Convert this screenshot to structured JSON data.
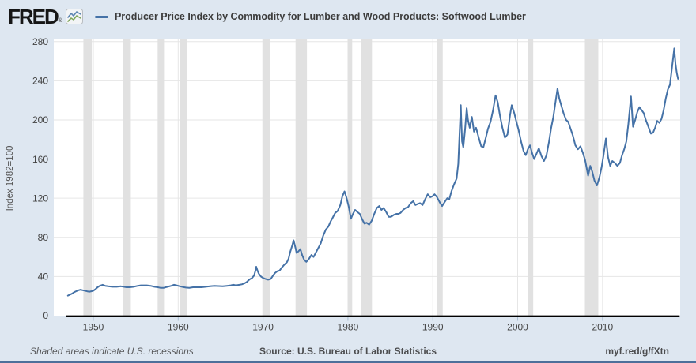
{
  "header": {
    "logo_text": "FRED",
    "registered_mark": "®",
    "series_title": "Producer Price Index by Commodity for Lumber and Wood Products: Softwood Lumber"
  },
  "footer": {
    "recession_note": "Shaded areas indicate U.S. recessions",
    "source": "Source: U.S. Bureau of Labor Statistics",
    "short_url": "myf.red/g/fXtn"
  },
  "colors": {
    "background": "#dee7f1",
    "bottom_bar": "#4d6f9a"
  },
  "chart_data": {
    "type": "line",
    "title": "Producer Price Index by Commodity for Lumber and Wood Products: Softwood Lumber",
    "xlabel": "",
    "ylabel": "Index 1982=100",
    "legend_position": "top",
    "grid": true,
    "xlim": [
      1945.34,
      2019.15
    ],
    "ylim": [
      0,
      283
    ],
    "x_ticks": [
      1950,
      1960,
      1970,
      1980,
      1990,
      2000,
      2010
    ],
    "y_ticks": [
      0,
      40,
      80,
      120,
      160,
      200,
      240,
      280
    ],
    "colors": {
      "line": "#4572a7",
      "plot_bg": "#ffffff",
      "gridline": "#e6e6e6",
      "recession_band": "#e1e1e1",
      "axis": "#000000",
      "tick_mark": "#a9bdd1",
      "tick_text": "#444444"
    },
    "recessions": [
      [
        1948.83,
        1949.83
      ],
      [
        1953.5,
        1954.42
      ],
      [
        1957.58,
        1958.33
      ],
      [
        1960.25,
        1961.08
      ],
      [
        1969.92,
        1970.83
      ],
      [
        1973.83,
        1975.17
      ],
      [
        1980.0,
        1980.5
      ],
      [
        1981.5,
        1982.83
      ],
      [
        1990.5,
        1991.17
      ],
      [
        2001.17,
        2001.83
      ],
      [
        2007.92,
        2009.5
      ]
    ],
    "series": [
      {
        "name": "Producer Price Index by Commodity for Lumber and Wood Products: Softwood Lumber",
        "points": [
          [
            1947.0,
            20.5
          ],
          [
            1947.25,
            21.5
          ],
          [
            1947.5,
            22.5
          ],
          [
            1947.75,
            24
          ],
          [
            1948.0,
            25
          ],
          [
            1948.25,
            26
          ],
          [
            1948.5,
            26.5
          ],
          [
            1948.75,
            26
          ],
          [
            1949.0,
            25.5
          ],
          [
            1949.3,
            24.8
          ],
          [
            1949.55,
            24.5
          ],
          [
            1949.8,
            25
          ],
          [
            1950.0,
            25.5
          ],
          [
            1950.25,
            27
          ],
          [
            1950.5,
            29
          ],
          [
            1950.75,
            30.5
          ],
          [
            1951.1,
            31.5
          ],
          [
            1951.4,
            30.5
          ],
          [
            1951.75,
            30
          ],
          [
            1952.25,
            29.5
          ],
          [
            1952.75,
            29.5
          ],
          [
            1953.25,
            30
          ],
          [
            1953.6,
            29.5
          ],
          [
            1953.9,
            29
          ],
          [
            1954.3,
            29
          ],
          [
            1954.75,
            29.5
          ],
          [
            1955.25,
            30.5
          ],
          [
            1955.6,
            31
          ],
          [
            1955.9,
            31
          ],
          [
            1956.3,
            31
          ],
          [
            1956.75,
            30.5
          ],
          [
            1957.2,
            29.5
          ],
          [
            1957.6,
            29
          ],
          [
            1957.9,
            28.5
          ],
          [
            1958.3,
            28.5
          ],
          [
            1958.75,
            29.5
          ],
          [
            1959.2,
            30.5
          ],
          [
            1959.5,
            31.5
          ],
          [
            1959.8,
            31
          ],
          [
            1960.2,
            30
          ],
          [
            1960.6,
            29.2
          ],
          [
            1960.9,
            28.7
          ],
          [
            1961.3,
            28.5
          ],
          [
            1961.75,
            29
          ],
          [
            1962.25,
            29
          ],
          [
            1962.75,
            29
          ],
          [
            1963.25,
            29.5
          ],
          [
            1963.75,
            30
          ],
          [
            1964.25,
            30.5
          ],
          [
            1964.75,
            30.2
          ],
          [
            1965.25,
            30
          ],
          [
            1965.75,
            30.5
          ],
          [
            1966.2,
            31
          ],
          [
            1966.5,
            31.5
          ],
          [
            1966.8,
            31
          ],
          [
            1967.2,
            31.5
          ],
          [
            1967.5,
            32
          ],
          [
            1967.8,
            33
          ],
          [
            1968.1,
            34.5
          ],
          [
            1968.4,
            37
          ],
          [
            1968.7,
            38.5
          ],
          [
            1968.95,
            41
          ],
          [
            1969.1,
            46
          ],
          [
            1969.2,
            50
          ],
          [
            1969.35,
            46
          ],
          [
            1969.5,
            43
          ],
          [
            1969.75,
            40
          ],
          [
            1970.0,
            38.5
          ],
          [
            1970.3,
            37.5
          ],
          [
            1970.6,
            36.8
          ],
          [
            1970.9,
            37.5
          ],
          [
            1971.1,
            40
          ],
          [
            1971.4,
            43.5
          ],
          [
            1971.7,
            45.5
          ],
          [
            1971.95,
            46
          ],
          [
            1972.2,
            49
          ],
          [
            1972.5,
            52
          ],
          [
            1972.8,
            54.5
          ],
          [
            1973.0,
            58
          ],
          [
            1973.2,
            65
          ],
          [
            1973.45,
            72
          ],
          [
            1973.6,
            77
          ],
          [
            1973.8,
            70
          ],
          [
            1973.95,
            64
          ],
          [
            1974.2,
            66
          ],
          [
            1974.4,
            68
          ],
          [
            1974.6,
            62
          ],
          [
            1974.85,
            57
          ],
          [
            1975.1,
            55
          ],
          [
            1975.4,
            58
          ],
          [
            1975.7,
            62
          ],
          [
            1975.95,
            60
          ],
          [
            1976.2,
            64
          ],
          [
            1976.5,
            69
          ],
          [
            1976.8,
            74
          ],
          [
            1977.1,
            82
          ],
          [
            1977.4,
            88
          ],
          [
            1977.7,
            91
          ],
          [
            1977.95,
            96
          ],
          [
            1978.2,
            100
          ],
          [
            1978.5,
            105
          ],
          [
            1978.8,
            107
          ],
          [
            1979.1,
            113
          ],
          [
            1979.35,
            122
          ],
          [
            1979.6,
            127
          ],
          [
            1979.85,
            120
          ],
          [
            1980.1,
            111
          ],
          [
            1980.35,
            99
          ],
          [
            1980.6,
            104
          ],
          [
            1980.85,
            108
          ],
          [
            1981.1,
            106
          ],
          [
            1981.4,
            104
          ],
          [
            1981.7,
            98
          ],
          [
            1981.95,
            94
          ],
          [
            1982.2,
            95
          ],
          [
            1982.5,
            93
          ],
          [
            1982.8,
            97
          ],
          [
            1983.1,
            104
          ],
          [
            1983.4,
            110
          ],
          [
            1983.7,
            112
          ],
          [
            1983.95,
            108
          ],
          [
            1984.2,
            110
          ],
          [
            1984.5,
            106
          ],
          [
            1984.8,
            101
          ],
          [
            1985.1,
            101
          ],
          [
            1985.4,
            103
          ],
          [
            1985.7,
            104
          ],
          [
            1985.95,
            104
          ],
          [
            1986.2,
            105
          ],
          [
            1986.5,
            108
          ],
          [
            1986.8,
            110
          ],
          [
            1987.1,
            111
          ],
          [
            1987.4,
            115
          ],
          [
            1987.7,
            117
          ],
          [
            1987.95,
            113
          ],
          [
            1988.2,
            114
          ],
          [
            1988.5,
            115
          ],
          [
            1988.8,
            113
          ],
          [
            1989.1,
            119
          ],
          [
            1989.4,
            124
          ],
          [
            1989.7,
            121
          ],
          [
            1989.95,
            122
          ],
          [
            1990.2,
            124
          ],
          [
            1990.5,
            121
          ],
          [
            1990.8,
            116
          ],
          [
            1991.1,
            112
          ],
          [
            1991.4,
            116
          ],
          [
            1991.7,
            120
          ],
          [
            1991.95,
            119
          ],
          [
            1992.2,
            127
          ],
          [
            1992.5,
            134
          ],
          [
            1992.8,
            140
          ],
          [
            1993.0,
            155
          ],
          [
            1993.15,
            185
          ],
          [
            1993.3,
            215
          ],
          [
            1993.45,
            178
          ],
          [
            1993.6,
            172
          ],
          [
            1993.8,
            190
          ],
          [
            1994.0,
            212
          ],
          [
            1994.15,
            200
          ],
          [
            1994.35,
            192
          ],
          [
            1994.6,
            203
          ],
          [
            1994.85,
            188
          ],
          [
            1995.1,
            192
          ],
          [
            1995.4,
            182
          ],
          [
            1995.7,
            173
          ],
          [
            1995.95,
            172
          ],
          [
            1996.2,
            180
          ],
          [
            1996.5,
            191
          ],
          [
            1996.8,
            198
          ],
          [
            1997.1,
            210
          ],
          [
            1997.4,
            225
          ],
          [
            1997.65,
            218
          ],
          [
            1997.9,
            205
          ],
          [
            1998.2,
            192
          ],
          [
            1998.5,
            182
          ],
          [
            1998.8,
            185
          ],
          [
            1999.1,
            205
          ],
          [
            1999.3,
            215
          ],
          [
            1999.6,
            207
          ],
          [
            1999.85,
            198
          ],
          [
            2000.1,
            190
          ],
          [
            2000.4,
            178
          ],
          [
            2000.7,
            168
          ],
          [
            2000.95,
            164
          ],
          [
            2001.2,
            170
          ],
          [
            2001.45,
            174
          ],
          [
            2001.7,
            166
          ],
          [
            2001.95,
            160
          ],
          [
            2002.2,
            165
          ],
          [
            2002.5,
            171
          ],
          [
            2002.8,
            163
          ],
          [
            2003.1,
            158
          ],
          [
            2003.4,
            164
          ],
          [
            2003.7,
            178
          ],
          [
            2003.95,
            192
          ],
          [
            2004.2,
            203
          ],
          [
            2004.45,
            218
          ],
          [
            2004.7,
            232
          ],
          [
            2004.9,
            222
          ],
          [
            2005.1,
            216
          ],
          [
            2005.4,
            207
          ],
          [
            2005.7,
            200
          ],
          [
            2005.95,
            198
          ],
          [
            2006.2,
            192
          ],
          [
            2006.5,
            184
          ],
          [
            2006.8,
            174
          ],
          [
            2007.1,
            170
          ],
          [
            2007.4,
            173
          ],
          [
            2007.7,
            166
          ],
          [
            2007.95,
            159
          ],
          [
            2008.3,
            143
          ],
          [
            2008.55,
            153
          ],
          [
            2008.8,
            147
          ],
          [
            2009.05,
            138
          ],
          [
            2009.35,
            133
          ],
          [
            2009.65,
            142
          ],
          [
            2009.9,
            152
          ],
          [
            2010.1,
            163
          ],
          [
            2010.4,
            181
          ],
          [
            2010.65,
            162
          ],
          [
            2010.9,
            153
          ],
          [
            2011.15,
            158
          ],
          [
            2011.45,
            156
          ],
          [
            2011.75,
            153
          ],
          [
            2012.05,
            156
          ],
          [
            2012.3,
            164
          ],
          [
            2012.55,
            170
          ],
          [
            2012.8,
            178
          ],
          [
            2013.05,
            196
          ],
          [
            2013.35,
            224
          ],
          [
            2013.6,
            193
          ],
          [
            2013.85,
            200
          ],
          [
            2014.1,
            208
          ],
          [
            2014.35,
            213
          ],
          [
            2014.6,
            210
          ],
          [
            2014.85,
            207
          ],
          [
            2015.1,
            200
          ],
          [
            2015.4,
            193
          ],
          [
            2015.7,
            186
          ],
          [
            2015.95,
            187
          ],
          [
            2016.2,
            192
          ],
          [
            2016.45,
            199
          ],
          [
            2016.7,
            197
          ],
          [
            2016.95,
            201
          ],
          [
            2017.2,
            210
          ],
          [
            2017.45,
            222
          ],
          [
            2017.7,
            231
          ],
          [
            2017.95,
            236
          ],
          [
            2018.1,
            247
          ],
          [
            2018.3,
            262
          ],
          [
            2018.45,
            273
          ],
          [
            2018.6,
            257
          ],
          [
            2018.75,
            248
          ],
          [
            2018.9,
            242
          ]
        ]
      }
    ]
  }
}
